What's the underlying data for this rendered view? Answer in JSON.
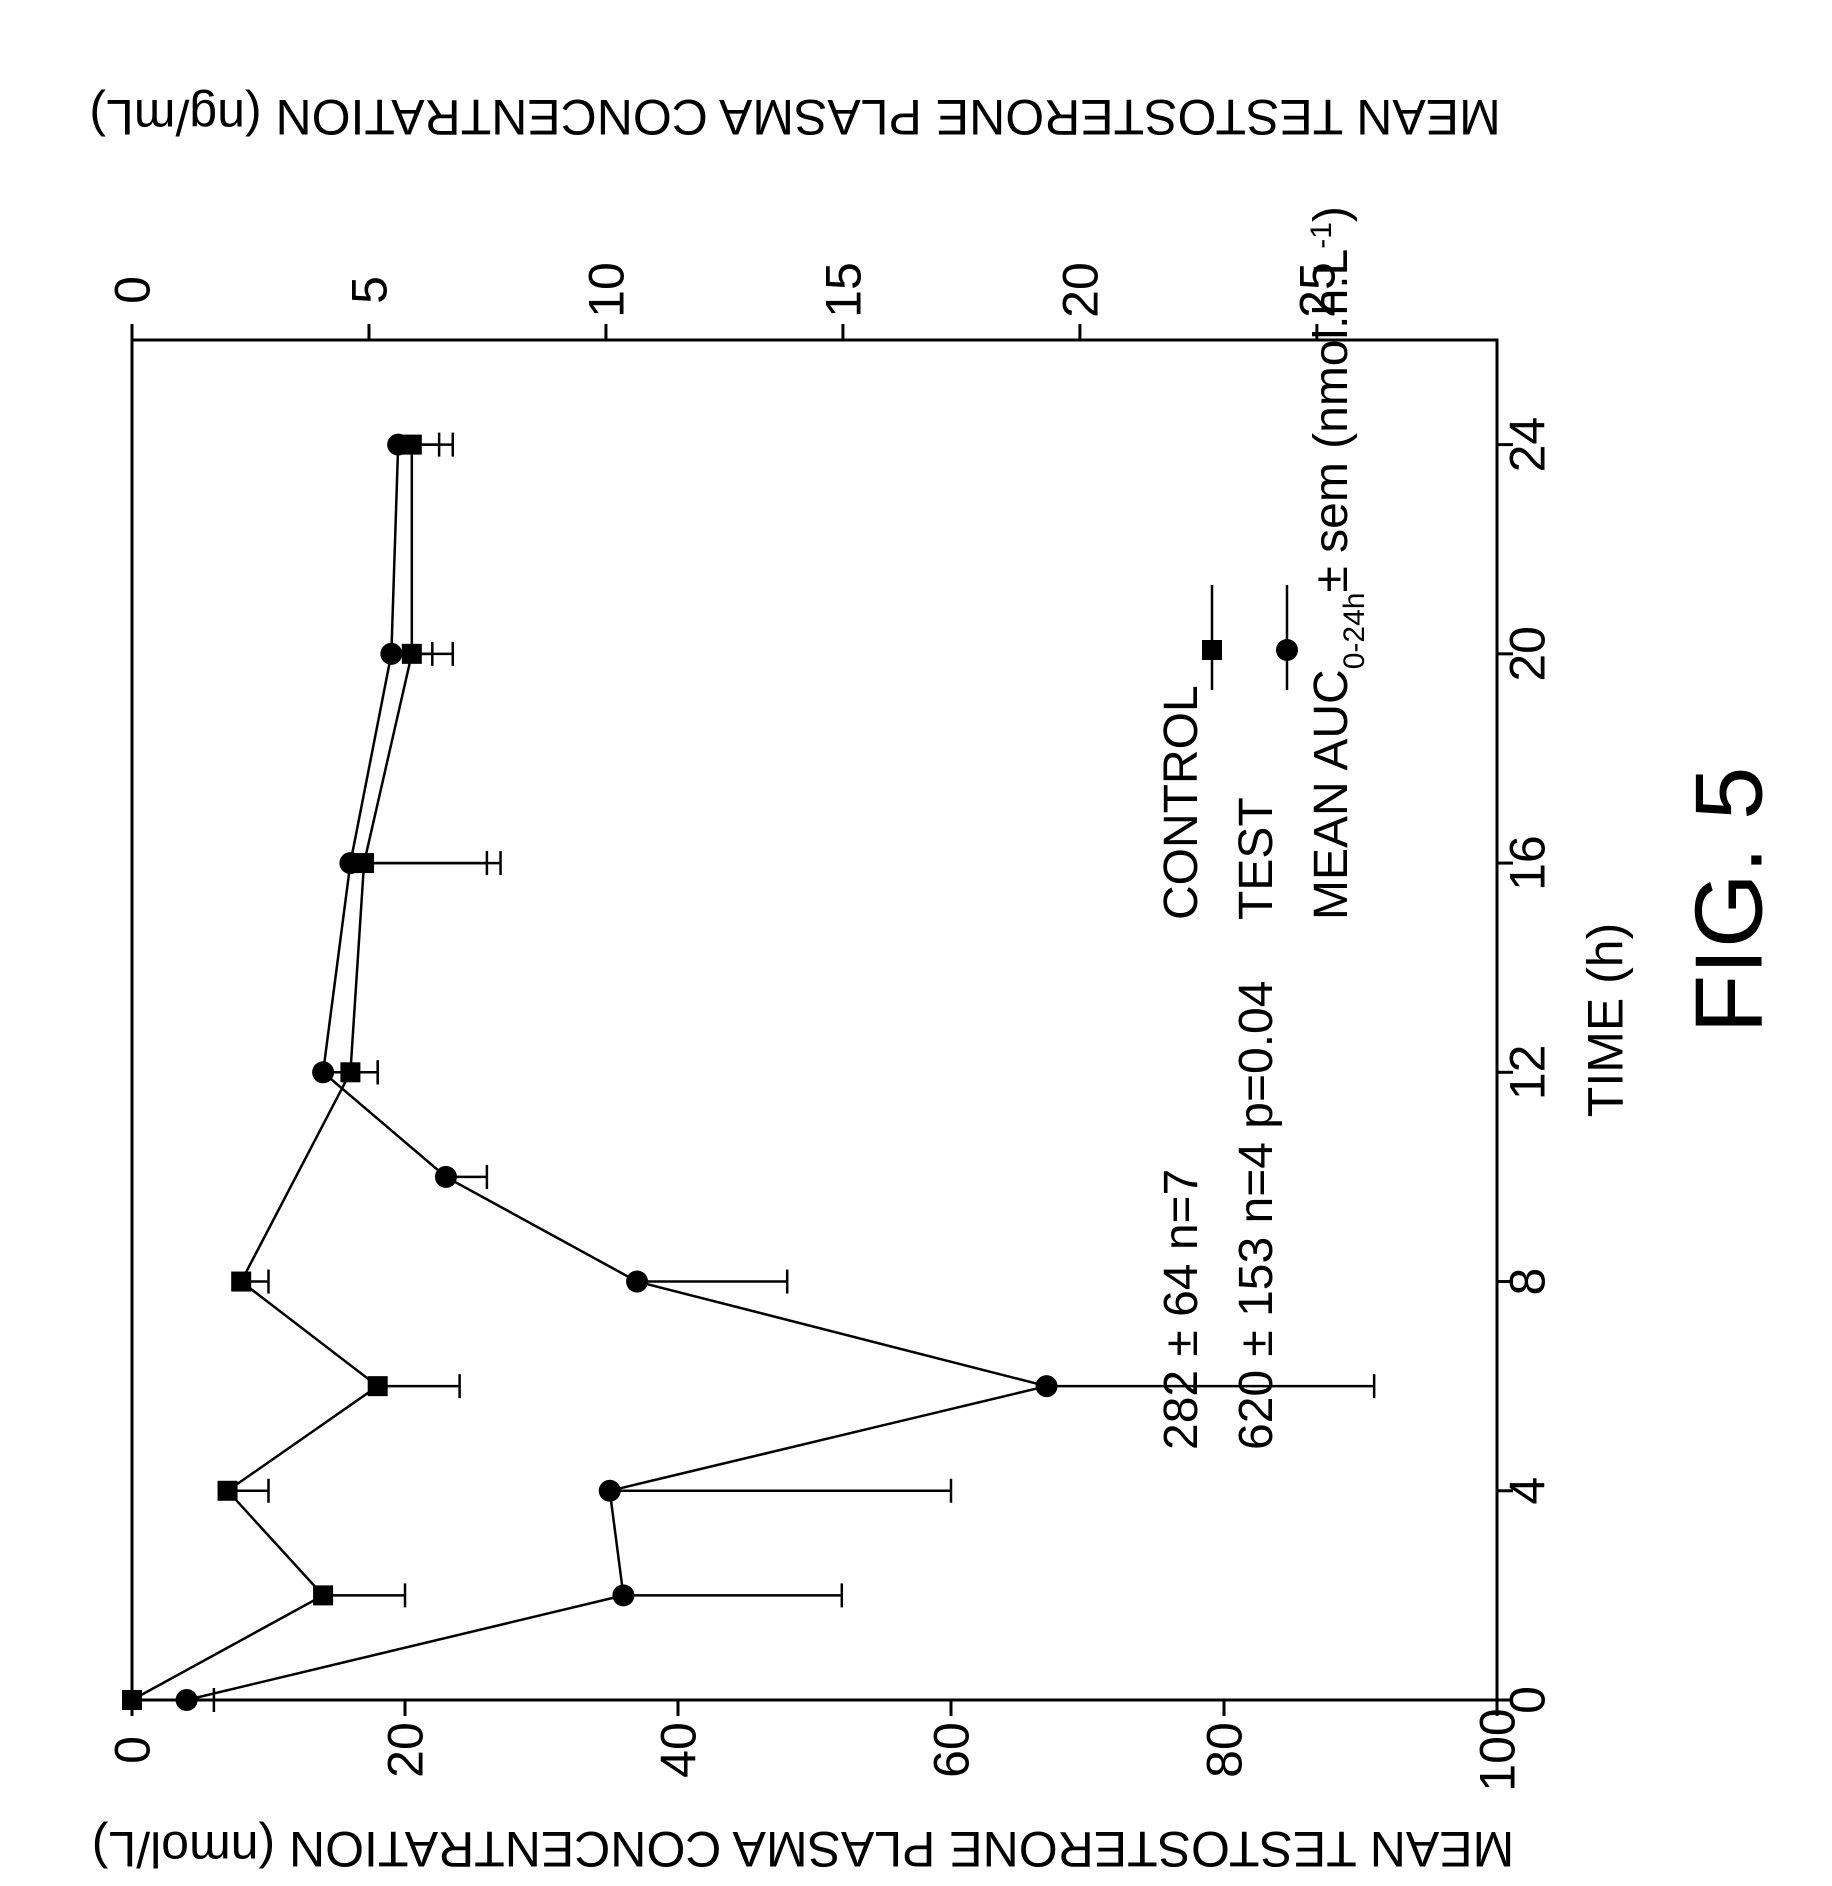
{
  "figure_label": "FIG. 5",
  "chart_data": {
    "type": "line",
    "x_axis": {
      "label": "TIME (h)",
      "range": [
        0,
        26
      ],
      "ticks": [
        0,
        4,
        8,
        12,
        16,
        20,
        24
      ],
      "tick_labels": [
        "0",
        "4",
        "8",
        "12",
        "16",
        "20",
        "24"
      ]
    },
    "y_axis_left": {
      "label": "MEAN TESTOSTERONE PLASMA CONCENTRATION (nmol/L)",
      "range": [
        0,
        100
      ],
      "ticks": [
        0,
        20,
        40,
        60,
        80,
        100
      ],
      "tick_labels": [
        "0",
        "20",
        "40",
        "60",
        "80",
        "100"
      ]
    },
    "y_axis_right": {
      "label": "MEAN TESTOSTERONE PLASMA CONCENTRATION (ng/mL)",
      "range": [
        0,
        28.8
      ],
      "ticks": [
        0,
        5,
        10,
        15,
        20,
        25
      ],
      "tick_labels": [
        "0",
        "5",
        "10",
        "15",
        "20",
        "25"
      ]
    },
    "legend": {
      "header_prefix": "MEAN AUC",
      "header_sub": "0-24h",
      "header_suffix": "± sem (nmol.h.L",
      "header_sup": "-1",
      "header_close": ")",
      "entries": [
        {
          "name": "TEST",
          "marker": "circle",
          "stats": "620 ± 153  n=4  p=0.04"
        },
        {
          "name": "CONTROL",
          "marker": "square",
          "stats": "282 ± 64    n=7"
        }
      ]
    },
    "series": [
      {
        "name": "TEST",
        "marker": "circle",
        "x": [
          0,
          2,
          4,
          6,
          8,
          10,
          12,
          16,
          20,
          24
        ],
        "y": [
          4,
          36,
          35,
          67,
          37,
          23,
          14,
          16,
          19,
          19.5
        ],
        "err": [
          2,
          16,
          25,
          24,
          11,
          3,
          4,
          11,
          3,
          3
        ]
      },
      {
        "name": "CONTROL",
        "marker": "square",
        "x": [
          0,
          2,
          4,
          6,
          8,
          12,
          16,
          20,
          24
        ],
        "y": [
          0,
          14,
          7,
          18,
          8,
          16,
          17,
          20.5,
          20.5
        ],
        "err": [
          0,
          6,
          3,
          6,
          2,
          2,
          9,
          3,
          3
        ]
      }
    ]
  }
}
